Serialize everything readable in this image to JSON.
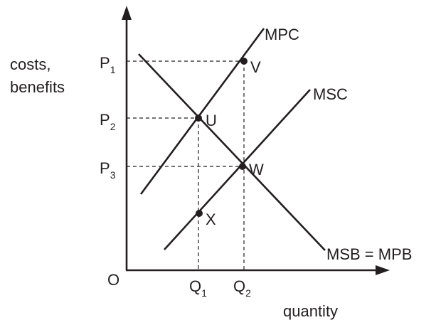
{
  "y_axis_label": {
    "line1": "costs,",
    "line2": "benefits"
  },
  "x_axis_label": "quantity",
  "origin_label": "O",
  "curves": {
    "mpc": "MPC",
    "msc": "MSC",
    "msb": "MSB = MPB"
  },
  "price_ticks": [
    {
      "letter": "P",
      "sub": "1"
    },
    {
      "letter": "P",
      "sub": "2"
    },
    {
      "letter": "P",
      "sub": "3"
    }
  ],
  "quantity_ticks": [
    {
      "letter": "Q",
      "sub": "1"
    },
    {
      "letter": "Q",
      "sub": "2"
    }
  ],
  "points": {
    "u": "U",
    "v": "V",
    "w": "W",
    "x": "X"
  },
  "colors": {
    "ink": "#231f20",
    "background": "#ffffff"
  }
}
